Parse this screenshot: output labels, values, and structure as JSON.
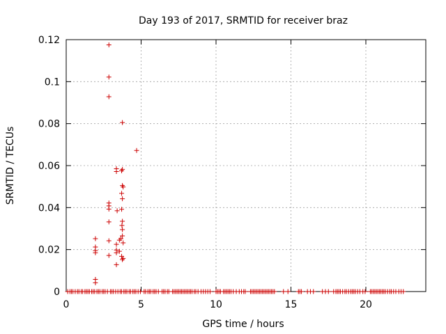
{
  "chart_data": {
    "type": "scatter",
    "title": "Day 193 of 2017, SRMTID for receiver braz",
    "xlabel": "GPS time / hours",
    "ylabel": "SRMTID / TECUs",
    "xlim": [
      0,
      24
    ],
    "ylim": [
      0,
      0.12
    ],
    "x_ticks": [
      0,
      5,
      10,
      15,
      20
    ],
    "x_tick_labels": [
      "0",
      "5",
      "10",
      "15",
      "20"
    ],
    "y_ticks": [
      0,
      0.02,
      0.04,
      0.06,
      0.08,
      0.1,
      0.12
    ],
    "y_tick_labels": [
      "0",
      "0.02",
      "0.04",
      "0.06",
      "0.08",
      "0.1",
      "0.12"
    ],
    "grid": true,
    "marker": "plus",
    "color": "#cc0000",
    "series": [
      {
        "name": "SRMTID",
        "points": [
          [
            1.95,
            0.0252
          ],
          [
            1.95,
            0.0212
          ],
          [
            1.95,
            0.0195
          ],
          [
            1.95,
            0.0185
          ],
          [
            1.95,
            0.0058
          ],
          [
            1.95,
            0.0042
          ],
          [
            2.85,
            0.1175
          ],
          [
            2.85,
            0.1022
          ],
          [
            2.85,
            0.0928
          ],
          [
            2.85,
            0.0422
          ],
          [
            2.85,
            0.0408
          ],
          [
            2.85,
            0.0393
          ],
          [
            2.85,
            0.0332
          ],
          [
            2.85,
            0.0242
          ],
          [
            2.85,
            0.0172
          ],
          [
            3.35,
            0.0585
          ],
          [
            3.35,
            0.0572
          ],
          [
            3.4,
            0.0385
          ],
          [
            3.35,
            0.0225
          ],
          [
            3.35,
            0.0198
          ],
          [
            3.35,
            0.0185
          ],
          [
            3.35,
            0.0128
          ],
          [
            3.55,
            0.0245
          ],
          [
            3.55,
            0.0192
          ],
          [
            3.75,
            0.0805
          ],
          [
            3.75,
            0.0582
          ],
          [
            3.7,
            0.0575
          ],
          [
            3.75,
            0.0505
          ],
          [
            3.8,
            0.0498
          ],
          [
            3.7,
            0.0468
          ],
          [
            3.75,
            0.0442
          ],
          [
            3.7,
            0.0392
          ],
          [
            3.75,
            0.0335
          ],
          [
            3.72,
            0.0315
          ],
          [
            3.75,
            0.0295
          ],
          [
            3.75,
            0.0265
          ],
          [
            3.65,
            0.0252
          ],
          [
            3.8,
            0.0232
          ],
          [
            3.7,
            0.0168
          ],
          [
            3.8,
            0.0158
          ],
          [
            3.75,
            0.0152
          ],
          [
            4.7,
            0.0672
          ]
        ],
        "baseline_x": [
          0.1,
          0.25,
          0.35,
          0.45,
          0.6,
          0.75,
          0.85,
          1.0,
          1.1,
          1.25,
          1.35,
          1.45,
          1.55,
          1.7,
          1.8,
          1.9,
          2.05,
          2.15,
          2.25,
          2.4,
          2.5,
          2.6,
          2.75,
          2.95,
          3.05,
          3.15,
          3.3,
          3.45,
          3.6,
          3.7,
          3.85,
          3.95,
          4.05,
          4.2,
          4.3,
          4.45,
          4.55,
          4.65,
          4.8,
          4.95,
          5.2,
          5.3,
          5.45,
          5.55,
          5.65,
          5.8,
          5.9,
          6.0,
          6.15,
          6.4,
          6.5,
          6.6,
          6.75,
          6.85,
          7.1,
          7.2,
          7.3,
          7.4,
          7.5,
          7.6,
          7.7,
          7.8,
          7.9,
          8.0,
          8.1,
          8.2,
          8.3,
          8.4,
          8.55,
          8.65,
          8.8,
          9.0,
          9.15,
          9.3,
          9.45,
          9.6,
          10.0,
          10.1,
          10.2,
          10.3,
          10.5,
          10.6,
          10.7,
          10.8,
          10.9,
          11.0,
          11.15,
          11.35,
          11.55,
          11.7,
          11.85,
          11.95,
          12.3,
          12.4,
          12.5,
          12.6,
          12.7,
          12.8,
          12.9,
          13.0,
          13.1,
          13.2,
          13.3,
          13.4,
          13.5,
          13.6,
          13.7,
          13.8,
          13.9,
          14.5,
          14.8,
          15.5,
          15.6,
          15.7,
          16.1,
          16.3,
          16.5,
          17.1,
          17.3,
          17.5,
          17.85,
          18.0,
          18.1,
          18.2,
          18.3,
          18.45,
          18.6,
          18.7,
          18.85,
          19.0,
          19.1,
          19.2,
          19.3,
          19.45,
          19.6,
          19.8,
          19.95,
          20.3,
          20.4,
          20.5,
          20.6,
          20.7,
          20.8,
          20.9,
          21.0,
          21.1,
          21.2,
          21.3,
          21.45,
          21.6,
          21.7,
          21.85,
          22.0,
          22.2,
          22.35,
          22.5
        ]
      }
    ]
  }
}
